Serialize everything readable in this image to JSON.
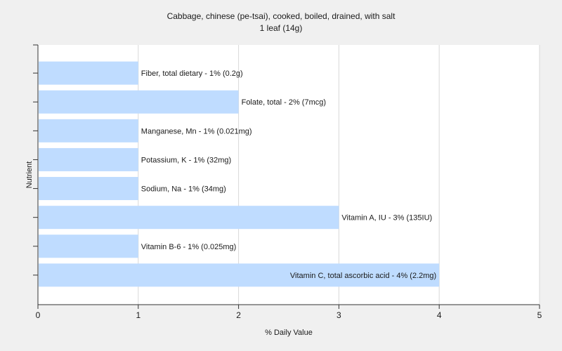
{
  "chart_data": {
    "type": "bar",
    "orientation": "horizontal",
    "title": "Cabbage, chinese (pe-tsai), cooked, boiled, drained, with salt",
    "subtitle": "1 leaf (14g)",
    "xlabel": "% Daily Value",
    "ylabel": "Nutrient",
    "xlim": [
      0,
      5
    ],
    "xticks": [
      "0",
      "1",
      "2",
      "3",
      "4",
      "5"
    ],
    "grid": true,
    "legend": "none",
    "bar_color": "#bfdcff",
    "grid_color": "#d8d8d8",
    "categories": [
      "Fiber, total dietary",
      "Folate, total",
      "Manganese, Mn",
      "Potassium, K",
      "Sodium, Na",
      "Vitamin A, IU",
      "Vitamin B-6",
      "Vitamin C, total ascorbic acid"
    ],
    "values": [
      1,
      2,
      1,
      1,
      1,
      3,
      1,
      4
    ],
    "data_labels": [
      "Fiber, total dietary - 1% (0.2g)",
      "Folate, total - 2% (7mcg)",
      "Manganese, Mn - 1% (0.021mg)",
      "Potassium, K - 1% (32mg)",
      "Sodium, Na - 1% (34mg)",
      "Vitamin A, IU - 3% (135IU)",
      "Vitamin B-6 - 1% (0.025mg)",
      "Vitamin C, total ascorbic acid - 4% (2.2mg)"
    ]
  }
}
